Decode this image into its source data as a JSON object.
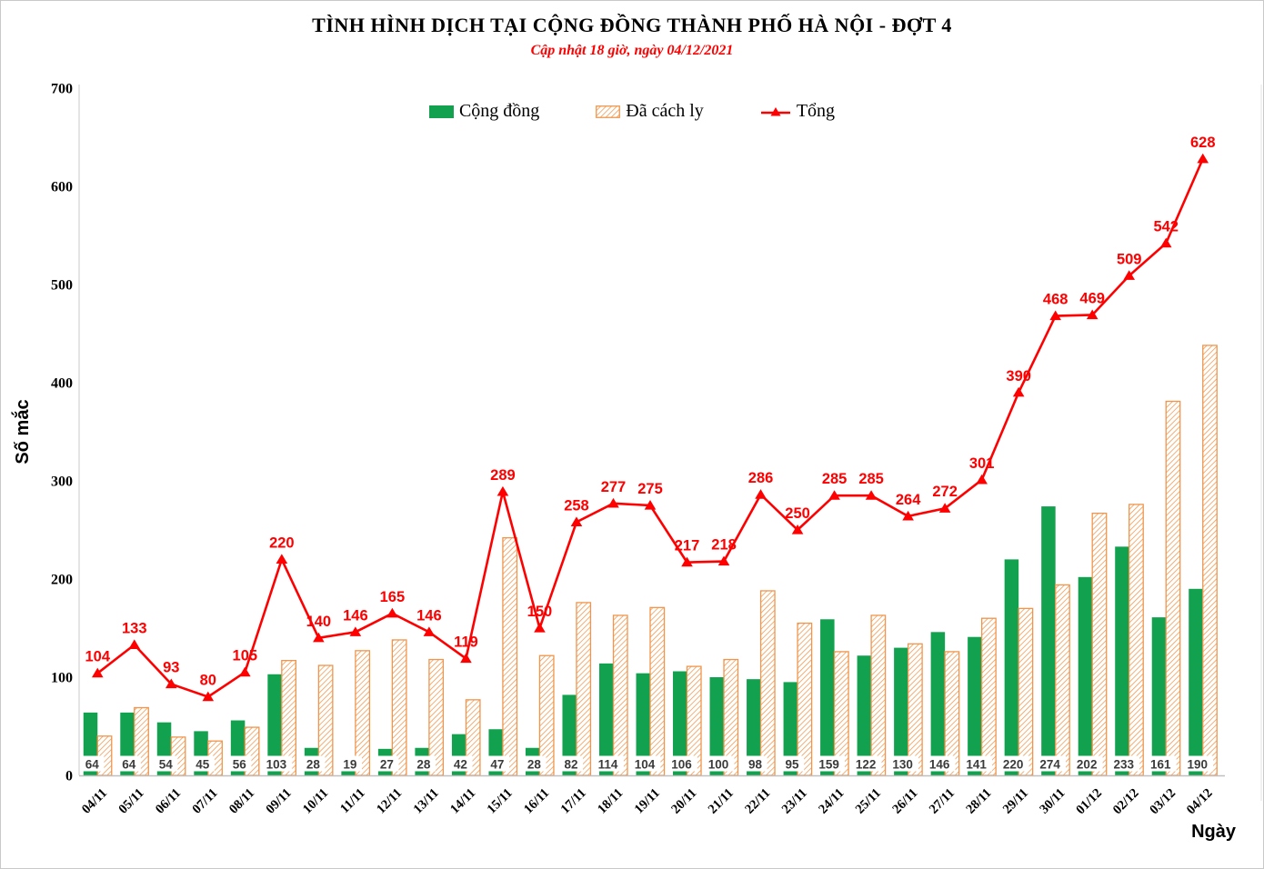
{
  "page": {
    "title": "TÌNH HÌNH DỊCH TẠI CỘNG ĐỒNG THÀNH PHỐ HÀ NỘI - ĐỢT 4",
    "subtitle": "Cập nhật 18 giờ, ngày 04/12/2021"
  },
  "colors": {
    "community_green": "#12A24F",
    "quarantine_orange": "#F0954B",
    "total_red": "#FE0000",
    "axis_gray": "#BFBFBF",
    "bar_label_text": "#3b3b3b"
  },
  "chart_data": {
    "type": "combo-bar-line",
    "title": "TÌNH HÌNH DỊCH TẠI CỘNG ĐỒNG THÀNH PHỐ HÀ NỘI - ĐỢT 4",
    "subtitle": "Cập nhật 18 giờ, ngày 04/12/2021",
    "categories": [
      "04/11",
      "05/11",
      "06/11",
      "07/11",
      "08/11",
      "09/11",
      "10/11",
      "11/11",
      "12/11",
      "13/11",
      "14/11",
      "15/11",
      "16/11",
      "17/11",
      "18/11",
      "19/11",
      "20/11",
      "21/11",
      "22/11",
      "23/11",
      "24/11",
      "25/11",
      "26/11",
      "27/11",
      "28/11",
      "29/11",
      "30/11",
      "01/12",
      "02/12",
      "03/12",
      "04/12"
    ],
    "series": [
      {
        "name": "Cộng đồng",
        "type": "bar",
        "color": "#12A24F",
        "labels": "boxed-at-base",
        "values": [
          64,
          64,
          54,
          45,
          56,
          103,
          28,
          19,
          27,
          28,
          42,
          47,
          28,
          82,
          114,
          104,
          106,
          100,
          98,
          95,
          159,
          122,
          130,
          146,
          141,
          220,
          274,
          202,
          233,
          161,
          190
        ]
      },
      {
        "name": "Đã cách ly",
        "type": "bar",
        "color": "#F0954B",
        "pattern": "diagonal-hatch",
        "labels": "none",
        "values": [
          40,
          69,
          39,
          35,
          49,
          117,
          112,
          127,
          138,
          118,
          77,
          242,
          122,
          176,
          163,
          171,
          111,
          118,
          188,
          155,
          126,
          163,
          134,
          126,
          160,
          170,
          194,
          267,
          276,
          381,
          438
        ]
      },
      {
        "name": "Tổng",
        "type": "line",
        "color": "#FE0000",
        "marker": "triangle-up",
        "labels": "above-points",
        "values": [
          104,
          133,
          93,
          80,
          105,
          220,
          140,
          146,
          165,
          146,
          119,
          289,
          150,
          258,
          277,
          275,
          217,
          218,
          286,
          250,
          285,
          285,
          264,
          272,
          301,
          390,
          468,
          469,
          509,
          542,
          628
        ]
      }
    ],
    "xlabel": "Ngày",
    "ylabel": "Số mắc",
    "ylim": [
      0,
      700
    ],
    "ytick_step": 100,
    "yticks": [
      0,
      100,
      200,
      300,
      400,
      500,
      600,
      700
    ],
    "grid": false,
    "legend_position": "top-center",
    "x_tick_rotation": -45
  }
}
